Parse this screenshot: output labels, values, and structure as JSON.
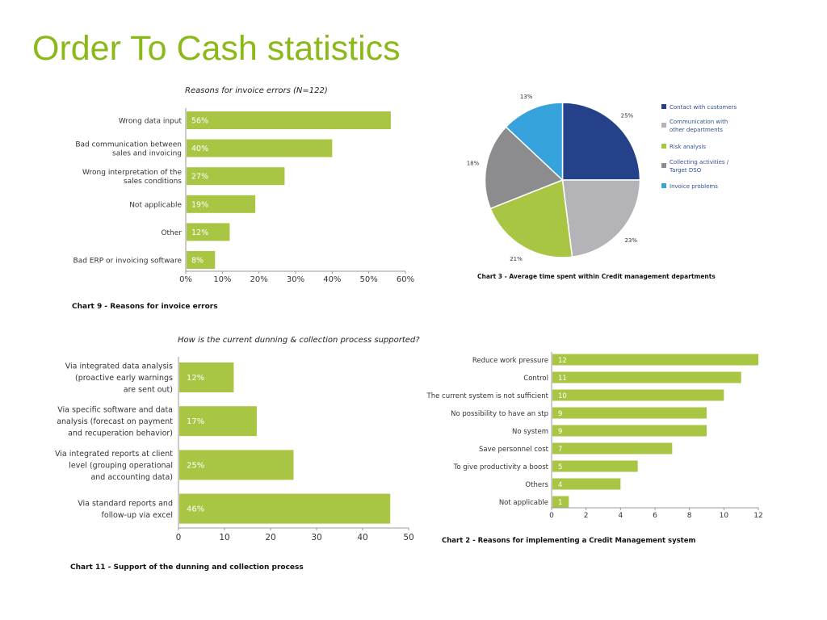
{
  "page": {
    "title": "Order To Cash statistics"
  },
  "colors": {
    "title": "#8cb91a",
    "bar": "#a8c544"
  },
  "chart_data": [
    {
      "id": "chart9",
      "type": "bar",
      "orientation": "horizontal",
      "title": "Reasons for invoice errors (N=122)",
      "caption": "Chart 9 - Reasons for invoice errors",
      "categories": [
        [
          "Wrong data input"
        ],
        [
          "Bad communication between",
          "sales and invoicing"
        ],
        [
          "Wrong interpretation of the",
          "sales conditions"
        ],
        [
          "Not applicable"
        ],
        [
          "Other"
        ],
        [
          "Bad ERP or invoicing software"
        ]
      ],
      "values": [
        56,
        40,
        27,
        19,
        12,
        8
      ],
      "labels": [
        "56%",
        "40%",
        "27%",
        "19%",
        "12%",
        "8%"
      ],
      "xlim": [
        0,
        60
      ],
      "ticks": [
        "0%",
        "10%",
        "20%",
        "30%",
        "40%",
        "50%",
        "60%"
      ]
    },
    {
      "id": "chart3",
      "type": "pie",
      "caption": "Chart 3 - Average time spent within Credit management departments",
      "slices": [
        {
          "name": "Contact with customers",
          "legend": [
            "Contact with customers"
          ],
          "value": 25,
          "label": "25%",
          "color": "#24418a"
        },
        {
          "name": "Communication with other departments",
          "legend": [
            "Communication with",
            "other departments"
          ],
          "value": 23,
          "label": "23%",
          "color": "#b4b4b8"
        },
        {
          "name": "Risk analysis",
          "legend": [
            "Risk analysis"
          ],
          "value": 21,
          "label": "21%",
          "color": "#a8c544"
        },
        {
          "name": "Collecting activities / Target DSO",
          "legend": [
            "Collecting activities /",
            "Target DSO"
          ],
          "value": 18,
          "label": "18%",
          "color": "#8c8c8e"
        },
        {
          "name": "Invoice problems",
          "legend": [
            "Invoice problems"
          ],
          "value": 13,
          "label": "13%",
          "color": "#36a3dc"
        }
      ]
    },
    {
      "id": "chart11",
      "type": "bar",
      "orientation": "horizontal",
      "title": "How is the current dunning & collection process supported?",
      "caption": "Chart 11 - Support of the dunning and collection process",
      "categories": [
        [
          "Via integrated data analysis",
          "(proactive early warnings",
          "are sent out)"
        ],
        [
          "Via specific software and data",
          "analysis (forecast on payment",
          "and recuperation behavior)"
        ],
        [
          "Via integrated reports at client",
          "level (grouping operational",
          "and accounting data)"
        ],
        [
          "Via standard reports and",
          "follow-up via excel"
        ]
      ],
      "values": [
        12,
        17,
        25,
        46
      ],
      "labels": [
        "12%",
        "17%",
        "25%",
        "46%"
      ],
      "xlim": [
        0,
        50
      ],
      "ticks": [
        "0",
        "10",
        "20",
        "30",
        "40",
        "50"
      ]
    },
    {
      "id": "chart2",
      "type": "bar",
      "orientation": "horizontal",
      "caption": "Chart 2 - Reasons for implementing a Credit Management system",
      "categories": [
        [
          "Reduce work pressure"
        ],
        [
          "Control"
        ],
        [
          "The current system is not sufficient"
        ],
        [
          "No possibility to have an stp"
        ],
        [
          "No system"
        ],
        [
          "Save personnel cost"
        ],
        [
          "To give productivity a boost"
        ],
        [
          "Others"
        ],
        [
          "Not applicable"
        ]
      ],
      "values": [
        12,
        11,
        10,
        9,
        9,
        7,
        5,
        4,
        1
      ],
      "labels": [
        "12",
        "11",
        "10",
        "9",
        "9",
        "7",
        "5",
        "4",
        "1"
      ],
      "xlim": [
        0,
        12
      ],
      "ticks": [
        "0",
        "2",
        "4",
        "6",
        "8",
        "10",
        "12"
      ]
    }
  ]
}
